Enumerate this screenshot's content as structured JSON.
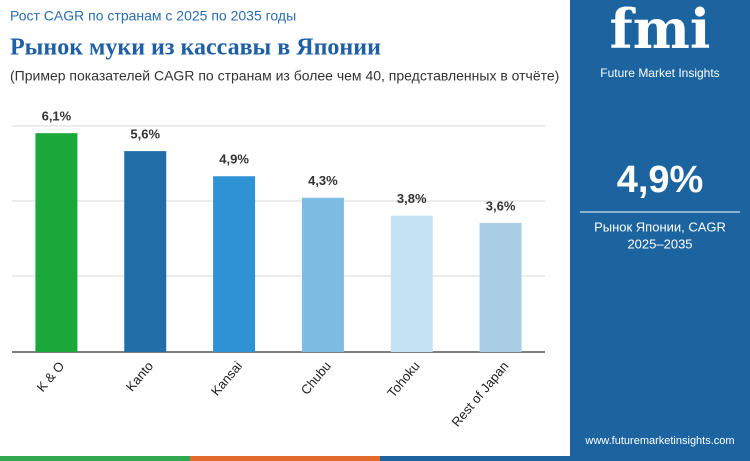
{
  "chart_data": {
    "type": "bar",
    "supertitle": "Рост CAGR по странам с 2025 по 2035 годы",
    "title": "Рынок муки из кассавы в Японии",
    "subtitle": "(Пример показателей CAGR по странам из более чем 40, представленных в отчёте)",
    "categories": [
      "K & O",
      "Kanto",
      "Kansai",
      "Chubu",
      "Tohoku",
      "Rest of Japan"
    ],
    "values": [
      6.1,
      5.6,
      4.9,
      4.3,
      3.8,
      3.6
    ],
    "value_labels": [
      "6,1%",
      "5,6%",
      "4,9%",
      "4,3%",
      "3,8%",
      "3,6%"
    ],
    "colors": [
      "#1aa839",
      "#1f6ea8",
      "#2e93d5",
      "#7ebde3",
      "#c3e2f4",
      "#a8cde5"
    ],
    "ylim": [
      0,
      6.3
    ]
  },
  "sidebar": {
    "brand": "fmi",
    "tagline": "Future Market Insights",
    "headline": "4,9%",
    "caption_1": "Рынок Японии, CAGR",
    "caption_2": "2025–2035",
    "url": "www.futuremarketinsights.com"
  }
}
